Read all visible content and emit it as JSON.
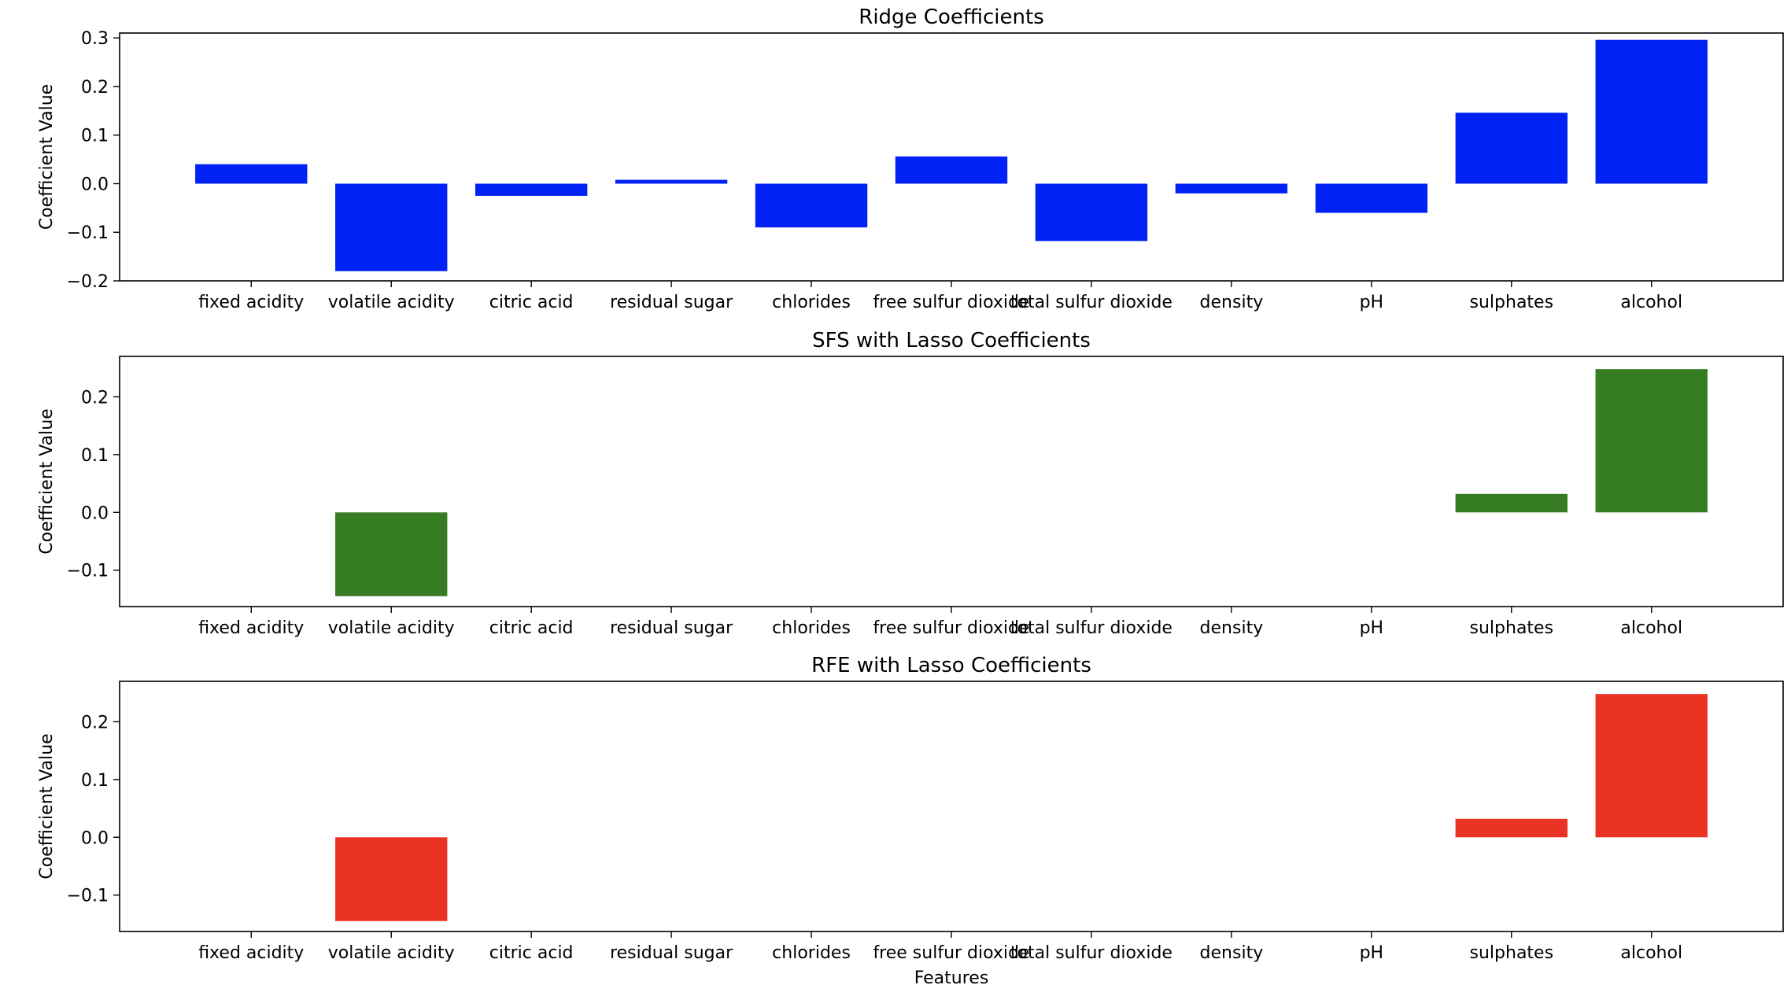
{
  "chart_data": [
    {
      "type": "bar",
      "title": "Ridge Coefficients",
      "xlabel": "",
      "ylabel": "Coefficient Value",
      "color": "#0022f5",
      "categories": [
        "fixed acidity",
        "volatile acidity",
        "citric acid",
        "residual sugar",
        "chlorides",
        "free sulfur dioxide",
        "total sulfur dioxide",
        "density",
        "pH",
        "sulphates",
        "alcohol"
      ],
      "values": [
        0.04,
        -0.18,
        -0.025,
        0.008,
        -0.09,
        0.056,
        -0.118,
        -0.02,
        -0.06,
        0.146,
        0.296
      ],
      "ylim": [
        -0.2,
        0.31
      ],
      "yticks": [
        -0.2,
        -0.1,
        0.0,
        0.1,
        0.2,
        0.3
      ],
      "ytick_labels": [
        "−0.2",
        "−0.1",
        "0.0",
        "0.1",
        "0.2",
        "0.3"
      ],
      "grid": false,
      "legend": null
    },
    {
      "type": "bar",
      "title": "SFS with Lasso Coefficients",
      "xlabel": "",
      "ylabel": "Coefficient Value",
      "color": "#367c23",
      "categories": [
        "fixed acidity",
        "volatile acidity",
        "citric acid",
        "residual sugar",
        "chlorides",
        "free sulfur dioxide",
        "total sulfur dioxide",
        "density",
        "pH",
        "sulphates",
        "alcohol"
      ],
      "values": [
        0,
        -0.145,
        0,
        0,
        0,
        0,
        0,
        0,
        0,
        0.032,
        0.248
      ],
      "ylim": [
        -0.163,
        0.27
      ],
      "yticks": [
        -0.1,
        0.0,
        0.1,
        0.2
      ],
      "ytick_labels": [
        "−0.1",
        "0.0",
        "0.1",
        "0.2"
      ],
      "grid": false,
      "legend": null
    },
    {
      "type": "bar",
      "title": "RFE with Lasso Coefficients",
      "xlabel": "Features",
      "ylabel": "Coefficient Value",
      "color": "#eb3323",
      "categories": [
        "fixed acidity",
        "volatile acidity",
        "citric acid",
        "residual sugar",
        "chlorides",
        "free sulfur dioxide",
        "total sulfur dioxide",
        "density",
        "pH",
        "sulphates",
        "alcohol"
      ],
      "values": [
        0,
        -0.145,
        0,
        0,
        0,
        0,
        0,
        0,
        0,
        0.032,
        0.248
      ],
      "ylim": [
        -0.163,
        0.27
      ],
      "yticks": [
        -0.1,
        0.0,
        0.1,
        0.2
      ],
      "ytick_labels": [
        "−0.1",
        "0.0",
        "0.1",
        "0.2"
      ],
      "grid": false,
      "legend": null
    }
  ]
}
